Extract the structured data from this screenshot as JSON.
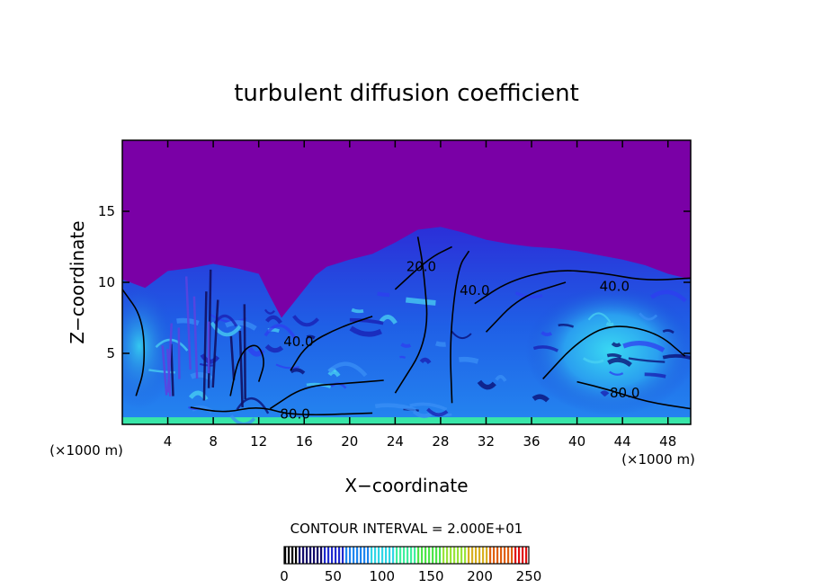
{
  "chart_data": {
    "type": "heatmap",
    "title": "turbulent diffusion coefficient",
    "xlabel": "X−coordinate",
    "ylabel": "Z−coordinate",
    "x_unit_left": "(×1000 m)",
    "x_unit_right": "(×1000 m)",
    "xlim": [
      0,
      50
    ],
    "ylim": [
      0,
      20
    ],
    "x_ticks": [
      "4",
      "8",
      "12",
      "16",
      "20",
      "24",
      "28",
      "32",
      "36",
      "40",
      "44",
      "48"
    ],
    "x_tick_values": [
      4,
      8,
      12,
      16,
      20,
      24,
      28,
      32,
      36,
      40,
      44,
      48
    ],
    "y_ticks": [
      "5",
      "10",
      "15"
    ],
    "y_tick_values": [
      5,
      10,
      15
    ],
    "contour_interval_text": "CONTOUR INTERVAL = 2.000E+01",
    "contour_interval": 20,
    "contour_labels": [
      {
        "text": "40.0",
        "x": 15.5,
        "y": 5.5
      },
      {
        "text": "20.0",
        "x": 26.3,
        "y": 10.8
      },
      {
        "text": "40.0",
        "x": 31.0,
        "y": 9.1
      },
      {
        "text": "40.0",
        "x": 43.3,
        "y": 9.4
      },
      {
        "text": "80.0",
        "x": 44.2,
        "y": 1.9
      },
      {
        "text": "80.0",
        "x": 15.2,
        "y": 0.4
      }
    ],
    "colorbar": {
      "min": 0,
      "max": 250,
      "tick_labels": [
        "0",
        "50",
        "100",
        "150",
        "200",
        "250"
      ],
      "tick_values": [
        0,
        50,
        100,
        150,
        200,
        250
      ]
    },
    "field_top_envelope": [
      [
        0,
        10.2
      ],
      [
        2,
        9.6
      ],
      [
        4,
        10.8
      ],
      [
        6,
        11.0
      ],
      [
        8,
        11.3
      ],
      [
        10,
        11.0
      ],
      [
        12,
        10.6
      ],
      [
        13,
        9.0
      ],
      [
        14,
        7.5
      ],
      [
        15,
        8.5
      ],
      [
        16,
        9.5
      ],
      [
        17,
        10.5
      ],
      [
        18,
        11.1
      ],
      [
        20,
        11.6
      ],
      [
        22,
        12.0
      ],
      [
        24,
        12.8
      ],
      [
        26,
        13.7
      ],
      [
        28,
        13.9
      ],
      [
        30,
        13.5
      ],
      [
        32,
        13.0
      ],
      [
        34,
        12.7
      ],
      [
        36,
        12.5
      ],
      [
        38,
        12.4
      ],
      [
        40,
        12.2
      ],
      [
        42,
        11.9
      ],
      [
        44,
        11.6
      ],
      [
        46,
        11.2
      ],
      [
        48,
        10.6
      ],
      [
        50,
        10.2
      ]
    ],
    "colors": {
      "background": "#7a00a6",
      "field_low": "#1a1cc8",
      "field_mid": "#2a9ff0",
      "field_high": "#3ef2c0",
      "colormap": [
        "#000000",
        "#120a6a",
        "#1f2bd0",
        "#1f86f0",
        "#2fd6e6",
        "#3ff0a0",
        "#4ee64a",
        "#9ae43a",
        "#d8b020",
        "#e06010",
        "#e01010"
      ]
    }
  }
}
